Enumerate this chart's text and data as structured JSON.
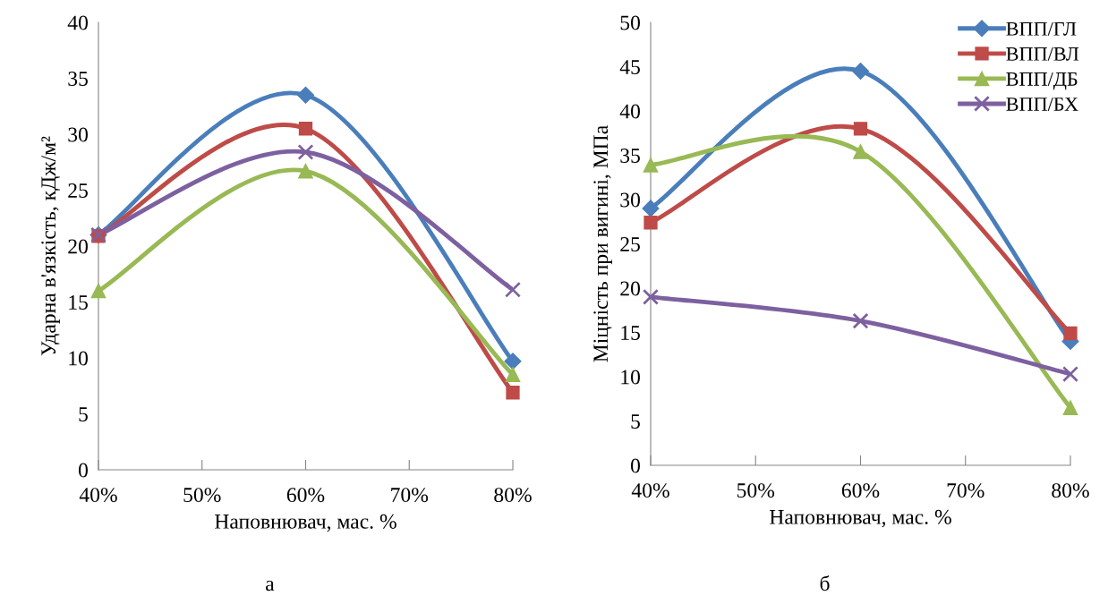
{
  "chart_data": [
    {
      "type": "line",
      "xlabel": "Наповнювач, мас. %",
      "ylabel": "Ударна в'язкість, кДж/м²",
      "annotations": [
        "а"
      ],
      "x": [
        40,
        60,
        80
      ],
      "xlim": [
        40,
        80
      ],
      "xticks": [
        {
          "value": 40,
          "label": "40%"
        },
        {
          "value": 50,
          "label": "50%"
        },
        {
          "value": 60,
          "label": "60%"
        },
        {
          "value": 70,
          "label": "70%"
        },
        {
          "value": 80,
          "label": "80%"
        }
      ],
      "ylim": [
        0,
        40
      ],
      "yticks": [
        0,
        5,
        10,
        15,
        20,
        25,
        30,
        35,
        40
      ],
      "grid": false,
      "series": [
        {
          "color": "#4a7ebb",
          "marker": "diamond",
          "values": [
            21.0,
            33.5,
            9.7
          ]
        },
        {
          "color": "#be4b48",
          "marker": "square",
          "values": [
            20.9,
            30.5,
            6.9
          ]
        },
        {
          "color": "#98b954",
          "marker": "triangle",
          "values": [
            16.0,
            26.7,
            8.5
          ]
        },
        {
          "color": "#7d60a0",
          "marker": "cross",
          "values": [
            21.0,
            28.4,
            16.1
          ]
        }
      ]
    },
    {
      "type": "line",
      "xlabel": "Наповнювач, мас. %",
      "ylabel": "Міцність при вигині, МПа",
      "annotations": [
        "б"
      ],
      "x": [
        40,
        60,
        80
      ],
      "xlim": [
        40,
        80
      ],
      "xticks": [
        {
          "value": 40,
          "label": "40%"
        },
        {
          "value": 50,
          "label": "50%"
        },
        {
          "value": 60,
          "label": "60%"
        },
        {
          "value": 70,
          "label": "70%"
        },
        {
          "value": 80,
          "label": "80%"
        }
      ],
      "ylim": [
        0,
        50
      ],
      "yticks": [
        0,
        5,
        10,
        15,
        20,
        25,
        30,
        35,
        40,
        45,
        50
      ],
      "grid": false,
      "legend": "top right",
      "series": [
        {
          "name": "ВПП/ГЛ",
          "color": "#4a7ebb",
          "marker": "diamond",
          "values": [
            29.0,
            44.5,
            14.0
          ]
        },
        {
          "name": "ВПП/ВЛ",
          "color": "#be4b48",
          "marker": "square",
          "values": [
            27.4,
            38.0,
            14.9
          ]
        },
        {
          "name": "ВПП/ДБ",
          "color": "#98b954",
          "marker": "triangle",
          "values": [
            33.9,
            35.4,
            6.5
          ]
        },
        {
          "name": "ВПП/БХ",
          "color": "#7d60a0",
          "marker": "cross",
          "values": [
            19.0,
            16.3,
            10.3
          ]
        }
      ]
    }
  ]
}
